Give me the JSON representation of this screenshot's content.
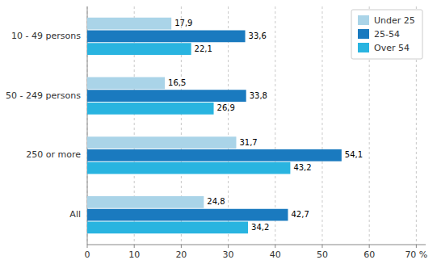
{
  "chart_data": {
    "type": "bar",
    "orientation": "horizontal",
    "categories": [
      "10 - 49 persons",
      "50 - 249 persons",
      "250 or more",
      "All"
    ],
    "series": [
      {
        "name": "Under 25",
        "color": "#aad4e8",
        "values": [
          17.9,
          16.5,
          31.7,
          24.8
        ],
        "value_labels": [
          "17,9",
          "16,5",
          "31,7",
          "24,8"
        ]
      },
      {
        "name": "25-54",
        "color": "#1a7abf",
        "values": [
          33.6,
          33.8,
          54.1,
          42.7
        ],
        "value_labels": [
          "33,6",
          "33,8",
          "54,1",
          "42,7"
        ]
      },
      {
        "name": "Over 54",
        "color": "#29b4e0",
        "values": [
          22.1,
          26.9,
          43.2,
          34.2
        ],
        "value_labels": [
          "22,1",
          "26,9",
          "43,2",
          "34,2"
        ]
      }
    ],
    "xlim": [
      0,
      72
    ],
    "xticks": [
      0,
      10,
      20,
      30,
      40,
      50,
      60,
      {
        "value": 70,
        "label": "70 %"
      }
    ],
    "grid": true,
    "legend": "upper right",
    "data_labels": true
  }
}
